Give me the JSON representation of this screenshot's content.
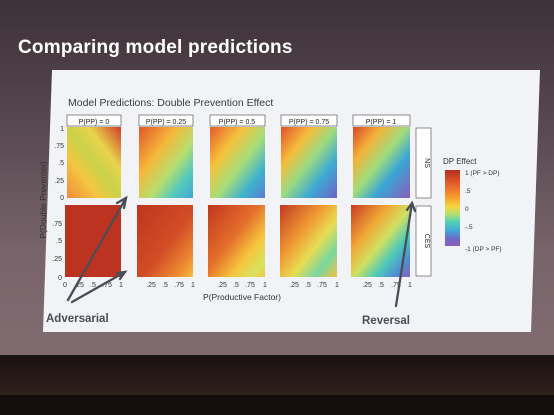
{
  "slide": {
    "title": "Comparing model predictions"
  },
  "figure": {
    "title": "Model Predictions: Double Prevention Effect",
    "columns": [
      "P(PP) = 0",
      "P(PP) = 0.25",
      "P(PP) = 0.5",
      "P(PP) = 0.75",
      "P(PP) = 1"
    ],
    "rows": [
      "NS",
      "CES"
    ],
    "y_axis_label": "P(Double Preventer)",
    "x_axis_label": "P(Productive Factor)",
    "y_ticks_top": [
      "1",
      ".75",
      ".5",
      ".25",
      "0"
    ],
    "y_ticks_bottom": [
      ".75",
      ".5",
      ".25",
      "0"
    ],
    "x_ticks_first": [
      "0",
      ".25",
      ".5",
      ".75",
      "1"
    ],
    "x_ticks": [
      ".25",
      ".5",
      ".75",
      "1"
    ],
    "legend": {
      "title": "DP Effect",
      "ticks": [
        "1 (PF > DP)",
        ".5",
        "0",
        "-.5",
        "-1 (DP > PF)"
      ],
      "colors": [
        "#b22d1e",
        "#e35f2a",
        "#f59a2f",
        "#f4d53c",
        "#b4e070",
        "#54d0b4",
        "#41a8d6",
        "#6b6cc9",
        "#8b5fb8"
      ]
    }
  },
  "annotations": {
    "left": "Adversarial",
    "right": "Reversal"
  }
}
